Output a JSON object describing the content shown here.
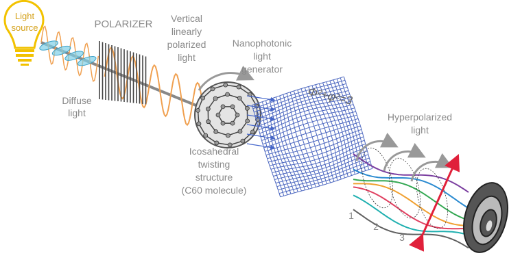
{
  "light_source": {
    "lines": [
      "Light",
      "source"
    ]
  },
  "diffuse_light": {
    "lines": [
      "Diffuse",
      "light"
    ]
  },
  "polarizer": {
    "label": "POLARIZER"
  },
  "polarized_light": {
    "lines": [
      "Vertical",
      "linearly",
      "polarized",
      "light"
    ]
  },
  "generator": {
    "lines": [
      "Nanophotonic",
      "light",
      "generator"
    ]
  },
  "equation": "Φ²+φ²=3",
  "structure": {
    "lines": [
      "Icosahedral",
      "twisting",
      "structure",
      "(C60 molecule)"
    ]
  },
  "hyperpolarized": {
    "lines": [
      "Hyperpolarized",
      "light"
    ]
  },
  "steps": [
    "1",
    "2",
    "3"
  ]
}
